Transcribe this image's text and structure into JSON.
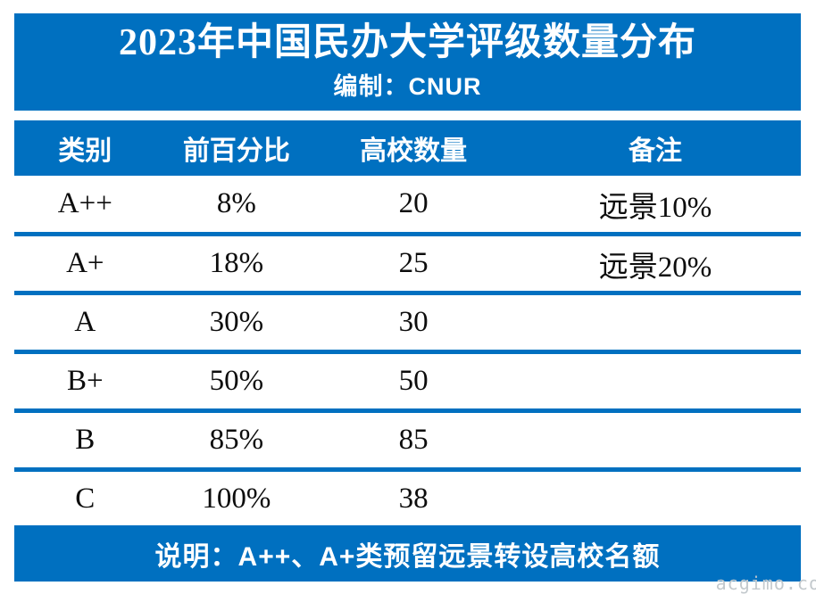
{
  "page": {
    "background": "#ffffff",
    "accent_blue": "#0070C0",
    "band_text_color": "#ffffff",
    "body_text_color": "#0d0d0d"
  },
  "title_block": {
    "title": "2023年中国民办大学评级数量分布",
    "subtitle": "编制：CNUR"
  },
  "table": {
    "columns": [
      "类别",
      "前百分比",
      "高校数量",
      "备注"
    ],
    "rows": [
      {
        "category": "A++",
        "percent": "8%",
        "count": "20",
        "note": "远景10%"
      },
      {
        "category": "A+",
        "percent": "18%",
        "count": "25",
        "note": "远景20%"
      },
      {
        "category": "A",
        "percent": "30%",
        "count": "30",
        "note": ""
      },
      {
        "category": "B+",
        "percent": "50%",
        "count": "50",
        "note": ""
      },
      {
        "category": "B",
        "percent": "85%",
        "count": "85",
        "note": ""
      },
      {
        "category": "C",
        "percent": "100%",
        "count": "38",
        "note": ""
      }
    ]
  },
  "footer": {
    "note": "说明：A++、A+类预留远景转设高校名额"
  },
  "watermark": "acgimo.co",
  "chart_data": {
    "type": "table",
    "title": "2023年中国民办大学评级数量分布",
    "subtitle": "编制：CNUR",
    "columns": [
      "类别",
      "前百分比",
      "高校数量",
      "备注"
    ],
    "rows": [
      [
        "A++",
        "8%",
        "20",
        "远景10%"
      ],
      [
        "A+",
        "18%",
        "25",
        "远景20%"
      ],
      [
        "A",
        "30%",
        "30",
        ""
      ],
      [
        "B+",
        "50%",
        "50",
        ""
      ],
      [
        "B",
        "85%",
        "85",
        ""
      ],
      [
        "C",
        "100%",
        "38",
        ""
      ]
    ],
    "counts": [
      20,
      25,
      30,
      50,
      85,
      38
    ],
    "top_percentages": [
      8,
      18,
      30,
      50,
      85,
      100
    ],
    "footnote": "说明：A++、A+类预留远景转设高校名额"
  }
}
